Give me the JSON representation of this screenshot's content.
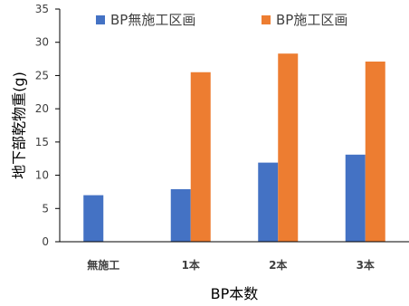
{
  "chart_data": {
    "type": "bar",
    "title": "",
    "xlabel": "BP本数",
    "ylabel": "地下部乾物重(g)",
    "categories": [
      "無施工",
      "1本",
      "2本",
      "3本"
    ],
    "series": [
      {
        "name": "BP無施工区画",
        "color": "#4472C4",
        "values": [
          7.0,
          7.9,
          11.9,
          13.1
        ]
      },
      {
        "name": "BP施工区画",
        "color": "#ED7D31",
        "values": [
          null,
          25.5,
          28.3,
          27.1
        ]
      }
    ],
    "ylim": [
      0,
      35
    ],
    "yticks": [
      0,
      5,
      10,
      15,
      20,
      25,
      30,
      35
    ],
    "grid": false,
    "legend": "top"
  }
}
